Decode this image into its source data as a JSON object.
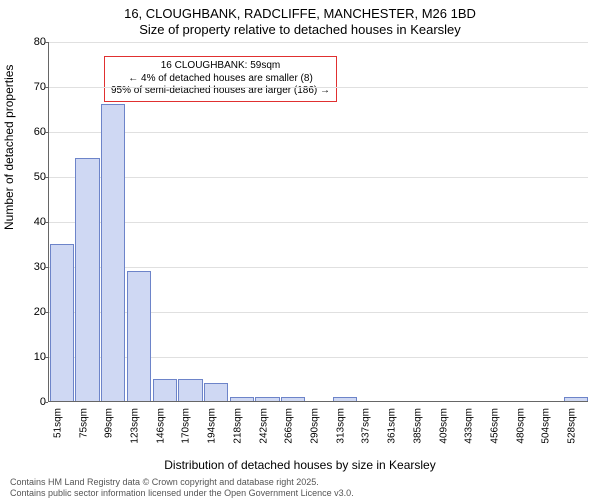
{
  "title_line1": "16, CLOUGHBANK, RADCLIFFE, MANCHESTER, M26 1BD",
  "title_line2": "Size of property relative to detached houses in Kearsley",
  "ylabel": "Number of detached properties",
  "xlabel": "Distribution of detached houses by size in Kearsley",
  "chart": {
    "type": "bar",
    "ylim": [
      0,
      80
    ],
    "ytick_step": 10,
    "bar_fill": "#cfd8f3",
    "bar_stroke": "#6d84c9",
    "grid_color": "#e0e0e0",
    "axis_color": "#666666",
    "background_color": "#ffffff",
    "tick_fontsize": 11,
    "xtick_fontsize": 10,
    "categories": [
      "51sqm",
      "75sqm",
      "99sqm",
      "123sqm",
      "146sqm",
      "170sqm",
      "194sqm",
      "218sqm",
      "242sqm",
      "266sqm",
      "290sqm",
      "313sqm",
      "337sqm",
      "361sqm",
      "385sqm",
      "409sqm",
      "433sqm",
      "456sqm",
      "480sqm",
      "504sqm",
      "528sqm"
    ],
    "values": [
      35,
      54,
      66,
      29,
      5,
      5,
      4,
      1,
      1,
      1,
      0,
      1,
      0,
      0,
      0,
      0,
      0,
      0,
      0,
      0,
      1
    ]
  },
  "annotation": {
    "border_color": "#e03030",
    "lines": [
      "16 CLOUGHBANK: 59sqm",
      "← 4% of detached houses are smaller (8)",
      "95% of semi-detached houses are larger (186) →"
    ]
  },
  "footer_line1": "Contains HM Land Registry data © Crown copyright and database right 2025.",
  "footer_line2": "Contains public sector information licensed under the Open Government Licence v3.0."
}
